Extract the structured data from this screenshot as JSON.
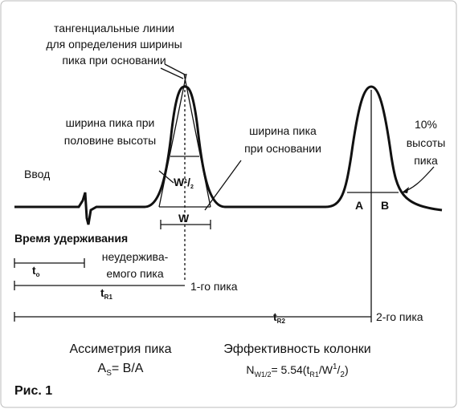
{
  "tangent_note": [
    "тангенциальные линии",
    "для определения ширины",
    "пика при основании"
  ],
  "half_width_note": [
    "ширина пика при",
    "половине высоты"
  ],
  "base_width_note": [
    "ширина пика",
    "при основании"
  ],
  "ten_percent_note": [
    "10%",
    "высоты",
    "пика"
  ],
  "injection": "Ввод",
  "retention_title": "Время удерживания",
  "unretained_note": [
    "неудержива-",
    "емого пика"
  ],
  "peak_labels": {
    "half_width": [
      "W",
      "1",
      "/",
      "2"
    ],
    "base_width": "W",
    "a": "A",
    "b": "B"
  },
  "times": {
    "t0": [
      "t",
      "o"
    ],
    "tr1": [
      "t",
      "R1"
    ],
    "tr2": [
      "t",
      "R2"
    ],
    "first_peak": "1-го пика",
    "second_peak": "2-го пика"
  },
  "asymmetry": {
    "title": "Ассиметрия пика",
    "parts": [
      "A",
      "S",
      "= B/A"
    ]
  },
  "efficiency": {
    "title": "Эффективность колонки",
    "parts": [
      "N",
      "W1/2",
      "= 5.54(t",
      "R1",
      "/W",
      "1",
      "/",
      "2",
      ")"
    ]
  },
  "figure_label": "Рис. 1"
}
